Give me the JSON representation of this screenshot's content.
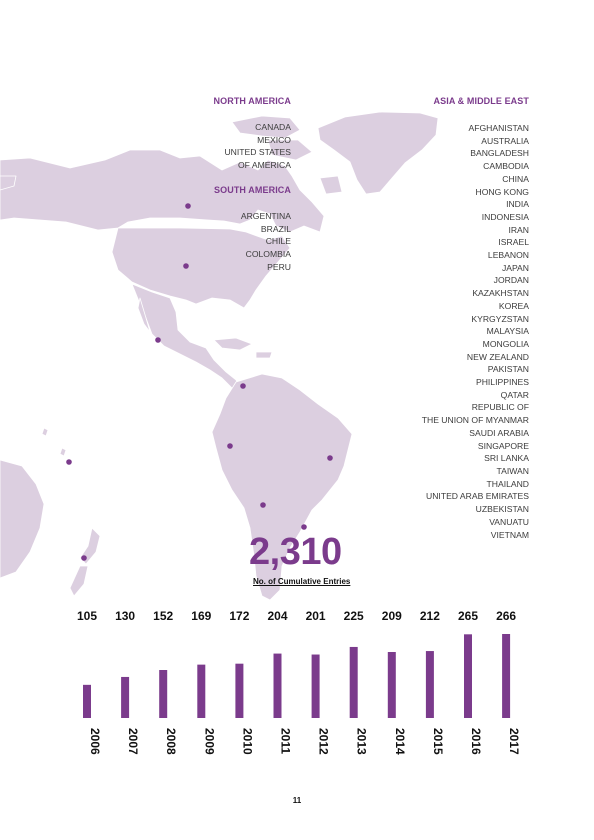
{
  "colors": {
    "accent": "#7b3b8c",
    "land": "#dccfe0",
    "text": "#3c3c3c"
  },
  "regions": {
    "north_america": {
      "title": "NORTH AMERICA",
      "countries": [
        "CANADA",
        "MEXICO",
        "UNITED STATES",
        "OF AMERICA"
      ]
    },
    "south_america": {
      "title": "SOUTH AMERICA",
      "countries": [
        "ARGENTINA",
        "BRAZIL",
        "CHILE",
        "COLOMBIA",
        "PERU"
      ]
    },
    "asia_middle_east": {
      "title": "ASIA & MIDDLE EAST",
      "countries": [
        "AFGHANISTAN",
        "AUSTRALIA",
        "BANGLADESH",
        "CAMBODIA",
        "CHINA",
        "HONG KONG",
        "INDIA",
        "INDONESIA",
        "IRAN",
        "ISRAEL",
        "LEBANON",
        "JAPAN",
        "JORDAN",
        "KAZAKHSTAN",
        "KOREA",
        "KYRGYZSTAN",
        "MALAYSIA",
        "MONGOLIA",
        "NEW ZEALAND",
        "PAKISTAN",
        "PHILIPPINES",
        "QATAR",
        "REPUBLIC OF",
        "THE UNION OF MYANMAR",
        "SAUDI ARABIA",
        "SINGAPORE",
        "SRI LANKA",
        "TAIWAN",
        "THAILAND",
        "UNITED ARAB EMIRATES",
        "UZBEKISTAN",
        "VANUATU",
        "VIETNAM"
      ]
    }
  },
  "summary": {
    "value": "2,310",
    "label": "No. of Cumulative Entries"
  },
  "chart_data": {
    "type": "bar",
    "categories": [
      "2006",
      "2007",
      "2008",
      "2009",
      "2010",
      "2011",
      "2012",
      "2013",
      "2014",
      "2015",
      "2016",
      "2017"
    ],
    "values": [
      105,
      130,
      152,
      169,
      172,
      204,
      201,
      225,
      209,
      212,
      265,
      266
    ],
    "title": "",
    "xlabel": "",
    "ylabel": "",
    "ylim": [
      0,
      270
    ],
    "grid": false,
    "legend": "none",
    "value_labels": "above"
  },
  "page_number": "11"
}
